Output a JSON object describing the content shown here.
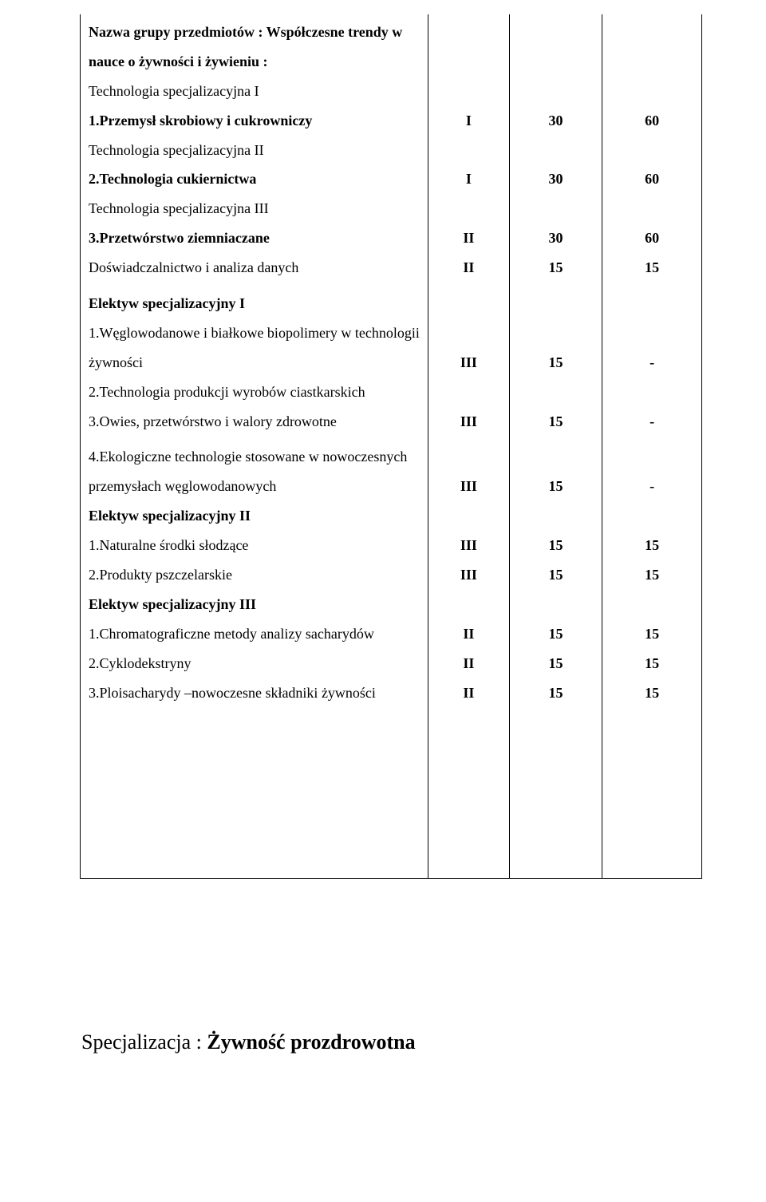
{
  "table": {
    "group1": {
      "heading_l1": "Nazwa grupy przedmiotów : Współczesne trendy w",
      "heading_l2": "nauce o żywności i żywieniu :",
      "spec1_label": "Technologia specjalizacyjna I",
      "item1": "1.Przemysł skrobiowy i cukrowniczy",
      "spec2_label": "Technologia specjalizacyjna II",
      "item2": "2.Technologia cukiernictwa",
      "spec3_label": "Technologia specjalizacyjna III",
      "item3": "3.Przetwórstwo ziemniaczane",
      "item4": "Doświadczalnictwo i analiza danych",
      "row1": {
        "a": "I",
        "b": "30",
        "c": "60"
      },
      "row2": {
        "a": "I",
        "b": "30",
        "c": "60"
      },
      "row3": {
        "a": "II",
        "b": "30",
        "c": "60"
      },
      "row4": {
        "a": "II",
        "b": "15",
        "c": "15"
      }
    },
    "elekI": {
      "heading": "Elektyw specjalizacyjny I",
      "l1": "1.Węglowodanowe i białkowe biopolimery w technologii",
      "l2": "żywności",
      "l3": "2.Technologia produkcji wyrobów ciastkarskich",
      "l4_pre": "3.Owies, przetwórstwo i ",
      "l4_em": "walory zdrowotne",
      "row1": {
        "a": "III",
        "b": "15",
        "c": "-"
      },
      "row2": {
        "a": "III",
        "b": "15",
        "c": "-"
      }
    },
    "group4": {
      "l1_pre": "4.",
      "l1_rest": "Ekologiczne technologie stosowane w nowoczesnych",
      "l2": "przemysłach węglowodanowych",
      "elekII_heading": "Elektyw specjalizacyjny II",
      "elekII_1": "1.Naturalne środki słodzące",
      "elekII_2": "2.Produkty pszczelarskie",
      "elekIII_heading": "Elektyw specjalizacyjny III",
      "elekIII_1": "1.Chromatograficzne metody analizy sacharydów",
      "elekIII_2": "2.Cyklodekstryny",
      "elekIII_3": "3.Ploisacharydy –nowoczesne składniki żywności",
      "row_eco": {
        "a": "III",
        "b": "15",
        "c": "-"
      },
      "row_e2_1": {
        "a": "III",
        "b": "15",
        "c": "15"
      },
      "row_e2_2": {
        "a": "III",
        "b": "15",
        "c": "15"
      },
      "row_e3_1": {
        "a": "II",
        "b": "15",
        "c": "15"
      },
      "row_e3_2": {
        "a": "II",
        "b": "15",
        "c": "15"
      },
      "row_e3_3": {
        "a": "II",
        "b": "15",
        "c": "15"
      }
    }
  },
  "footer": {
    "label": "Specjalizacja : ",
    "title": "Żywność prozdrowotna"
  }
}
